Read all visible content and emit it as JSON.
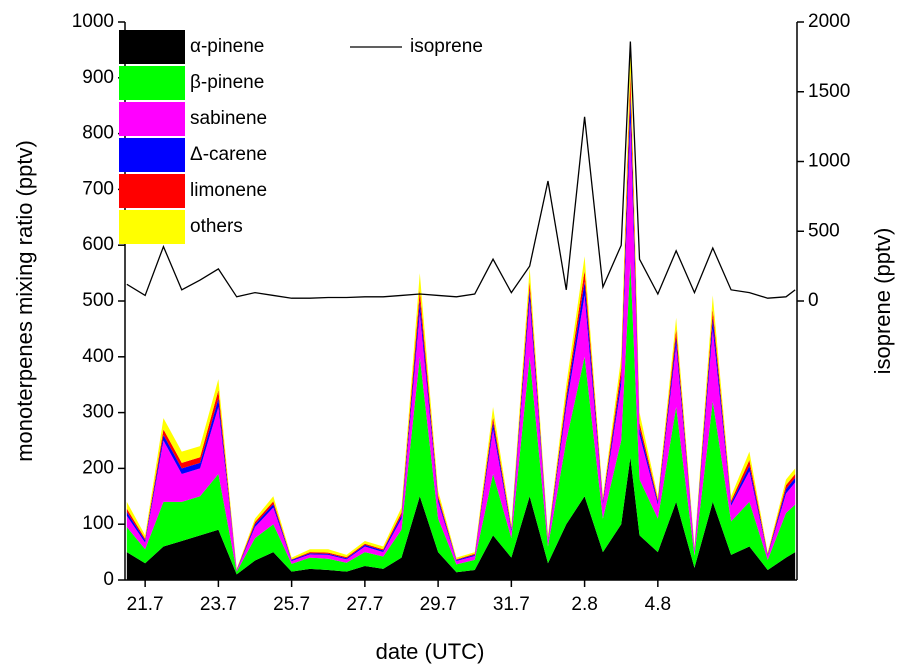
{
  "chart_data": {
    "type": "stacked_area",
    "xlabel": "date (UTC)",
    "ylabel": "monoterpenes mixing ratio (pptv)",
    "y2label": "isoprene (pptv)",
    "x": [
      -0.5,
      0,
      0.5,
      1,
      1.5,
      2,
      2.5,
      3,
      3.5,
      4,
      4.5,
      5,
      5.5,
      6,
      6.5,
      7,
      7.5,
      8,
      8.5,
      9,
      9.5,
      10,
      10.5,
      11,
      11.5,
      12,
      12.5,
      13,
      13.25,
      13.5,
      14,
      14.5,
      15,
      15.5,
      16,
      16.5,
      17,
      17.5,
      17.75
    ],
    "xlim": [
      -0.55,
      17.8
    ],
    "xticks": [
      {
        "value": 0,
        "label": "21.7"
      },
      {
        "value": 2,
        "label": "23.7"
      },
      {
        "value": 4,
        "label": "25.7"
      },
      {
        "value": 6,
        "label": "27.7"
      },
      {
        "value": 8,
        "label": "29.7"
      },
      {
        "value": 10,
        "label": "31.7"
      },
      {
        "value": 12,
        "label": "2.8"
      },
      {
        "value": 14,
        "label": "4.8"
      }
    ],
    "ylim": [
      0,
      1000
    ],
    "yticks": [
      0,
      100,
      200,
      300,
      400,
      500,
      600,
      700,
      800,
      900,
      1000
    ],
    "y2lim": [
      -2000,
      2000
    ],
    "y2ticks": [
      0,
      500,
      1000,
      1500,
      2000
    ],
    "series": [
      {
        "name": "α-pinene",
        "color": "#000000",
        "values": [
          50,
          30,
          60,
          70,
          80,
          90,
          10,
          35,
          50,
          15,
          20,
          18,
          15,
          25,
          20,
          40,
          150,
          50,
          14,
          18,
          80,
          40,
          150,
          30,
          100,
          150,
          50,
          100,
          220,
          80,
          50,
          140,
          22,
          140,
          45,
          60,
          18,
          40,
          50
        ]
      },
      {
        "name": "β-pinene",
        "color": "#00ff00",
        "values": [
          45,
          25,
          80,
          70,
          70,
          100,
          5,
          40,
          50,
          14,
          20,
          20,
          16,
          25,
          22,
          50,
          250,
          60,
          14,
          18,
          110,
          35,
          250,
          30,
          150,
          250,
          60,
          150,
          350,
          100,
          60,
          170,
          22,
          180,
          60,
          80,
          18,
          80,
          85
        ]
      },
      {
        "name": "sabinene",
        "color": "#ff00ff",
        "values": [
          20,
          12,
          110,
          50,
          50,
          120,
          2,
          20,
          30,
          5,
          6,
          7,
          6,
          10,
          8,
          20,
          80,
          30,
          6,
          7,
          80,
          12,
          100,
          10,
          60,
          110,
          25,
          100,
          250,
          80,
          25,
          110,
          8,
          130,
          28,
          55,
          7,
          35,
          40
        ]
      },
      {
        "name": "Δ-carene",
        "color": "#0000ff",
        "values": [
          7,
          4,
          10,
          10,
          10,
          15,
          1,
          5,
          6,
          2,
          2,
          2,
          2,
          3,
          3,
          6,
          20,
          6,
          2,
          2,
          12,
          4,
          20,
          3,
          12,
          25,
          5,
          15,
          50,
          12,
          5,
          15,
          3,
          20,
          5,
          10,
          2,
          8,
          8
        ]
      },
      {
        "name": "limonene",
        "color": "#ff0000",
        "values": [
          6,
          3,
          10,
          10,
          10,
          15,
          1,
          4,
          5,
          1,
          2,
          2,
          2,
          2,
          2,
          5,
          20,
          5,
          1,
          2,
          10,
          3,
          15,
          3,
          10,
          20,
          4,
          15,
          40,
          10,
          4,
          15,
          2,
          15,
          4,
          10,
          2,
          7,
          7
        ]
      },
      {
        "name": "others",
        "color": "#ffff00",
        "values": [
          12,
          6,
          20,
          20,
          20,
          20,
          1,
          6,
          9,
          3,
          5,
          6,
          4,
          5,
          5,
          9,
          30,
          9,
          3,
          3,
          18,
          6,
          25,
          4,
          18,
          25,
          6,
          20,
          50,
          18,
          6,
          20,
          3,
          25,
          8,
          15,
          3,
          10,
          10
        ]
      },
      {
        "name": "isoprene",
        "color": "#000000",
        "type": "line",
        "axis": "y2",
        "values": [
          120,
          40,
          390,
          80,
          150,
          230,
          30,
          60,
          40,
          20,
          20,
          25,
          25,
          30,
          30,
          40,
          50,
          40,
          30,
          50,
          300,
          60,
          250,
          860,
          80,
          1320,
          100,
          400,
          1860,
          300,
          50,
          360,
          60,
          380,
          80,
          60,
          20,
          30,
          80
        ]
      }
    ]
  }
}
